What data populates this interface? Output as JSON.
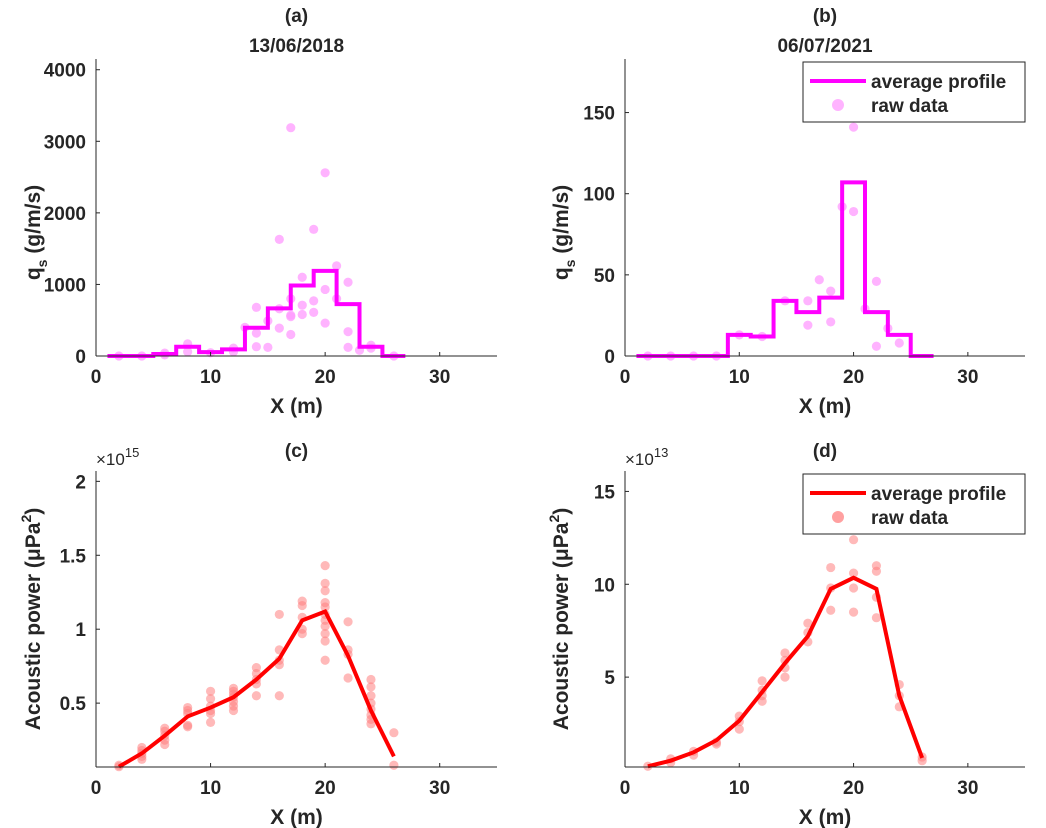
{
  "chart_data": [
    {
      "id": "a",
      "type": "line",
      "subtype": "step+scatter",
      "panel_label": "(a)",
      "title": "13/06/2018",
      "xlabel": "X (m)",
      "ylabel_main": "q",
      "ylabel_sub": "s",
      "ylabel_unit": " (g/m/s)",
      "xlim": [
        0,
        35
      ],
      "ylim": [
        0,
        4150
      ],
      "xticks": [
        0,
        10,
        20,
        30
      ],
      "yticks": [
        0,
        1000,
        2000,
        3000,
        4000
      ],
      "ytick_labels": [
        "0",
        "1000",
        "2000",
        "3000",
        "4000"
      ],
      "exponent_label": "",
      "color": "#ff00ff",
      "scatter_color": "#ff99ff",
      "legend": null,
      "average_profile": {
        "type": "step",
        "edges": [
          1,
          3,
          5,
          7,
          9,
          11,
          13,
          15,
          17,
          19,
          21,
          23,
          25,
          27
        ],
        "values": [
          0,
          0,
          28,
          130,
          55,
          93,
          395,
          665,
          985,
          1190,
          725,
          130,
          0
        ]
      },
      "raw_data": [
        [
          2,
          0
        ],
        [
          4,
          0
        ],
        [
          6,
          15
        ],
        [
          6,
          40
        ],
        [
          8,
          60
        ],
        [
          8,
          170
        ],
        [
          10,
          45
        ],
        [
          12,
          60
        ],
        [
          12,
          110
        ],
        [
          13,
          400
        ],
        [
          14,
          130
        ],
        [
          14,
          320
        ],
        [
          14,
          680
        ],
        [
          15,
          120
        ],
        [
          15,
          490
        ],
        [
          16,
          390
        ],
        [
          16,
          660
        ],
        [
          16,
          1630
        ],
        [
          17,
          300
        ],
        [
          17,
          550
        ],
        [
          17,
          570
        ],
        [
          17,
          800
        ],
        [
          17,
          3190
        ],
        [
          18,
          580
        ],
        [
          18,
          710
        ],
        [
          18,
          1100
        ],
        [
          19,
          610
        ],
        [
          19,
          770
        ],
        [
          19,
          1770
        ],
        [
          20,
          460
        ],
        [
          20,
          930
        ],
        [
          20,
          2560
        ],
        [
          21,
          800
        ],
        [
          21,
          1260
        ],
        [
          22,
          120
        ],
        [
          22,
          340
        ],
        [
          22,
          1030
        ],
        [
          23,
          80
        ],
        [
          24,
          110
        ],
        [
          24,
          150
        ],
        [
          26,
          0
        ]
      ]
    },
    {
      "id": "b",
      "type": "line",
      "subtype": "step+scatter",
      "panel_label": "(b)",
      "title": "06/07/2021",
      "xlabel": "X (m)",
      "ylabel_main": "q",
      "ylabel_sub": "s",
      "ylabel_unit": " (g/m/s)",
      "xlim": [
        0,
        35
      ],
      "ylim": [
        0,
        183
      ],
      "xticks": [
        0,
        10,
        20,
        30
      ],
      "yticks": [
        0,
        50,
        100,
        150
      ],
      "ytick_labels": [
        "0",
        "50",
        "100",
        "150"
      ],
      "exponent_label": "",
      "color": "#ff00ff",
      "scatter_color": "#ff99ff",
      "legend": {
        "position": "top-right",
        "entries": [
          "average profile",
          "raw data"
        ]
      },
      "average_profile": {
        "type": "step",
        "edges": [
          1,
          3,
          5,
          7,
          9,
          11,
          13,
          15,
          17,
          19,
          21,
          23,
          25,
          27
        ],
        "values": [
          0,
          0,
          0,
          0,
          13,
          12,
          34,
          27,
          36,
          107,
          27,
          13,
          0
        ]
      },
      "raw_data": [
        [
          2,
          0
        ],
        [
          4,
          0
        ],
        [
          6,
          0
        ],
        [
          8,
          0
        ],
        [
          10,
          13
        ],
        [
          12,
          12
        ],
        [
          14,
          34
        ],
        [
          16,
          34
        ],
        [
          16,
          19
        ],
        [
          17,
          47
        ],
        [
          18,
          40
        ],
        [
          18,
          21
        ],
        [
          19,
          92
        ],
        [
          20,
          89
        ],
        [
          20,
          141
        ],
        [
          21,
          29
        ],
        [
          22,
          46
        ],
        [
          22,
          6
        ],
        [
          23,
          17
        ],
        [
          24,
          8
        ]
      ]
    },
    {
      "id": "c",
      "type": "line",
      "subtype": "line+scatter",
      "panel_label": "(c)",
      "title": "",
      "xlabel": "X (m)",
      "ylabel_main": "Acoustic power (μPa",
      "ylabel_sub": "2",
      "ylabel_unit": ")",
      "xlim": [
        0,
        35
      ],
      "ylim": [
        0.068,
        2.07
      ],
      "xticks": [
        0,
        10,
        20,
        30
      ],
      "yticks": [
        0.5,
        1,
        1.5,
        2
      ],
      "ytick_labels": [
        "0.5",
        "1",
        "1.5",
        "2"
      ],
      "exponent_label": "15",
      "y_multiplier": "×10^15",
      "color": "#ff0000",
      "scatter_color": "#ff8080",
      "legend": null,
      "average_profile": {
        "type": "line",
        "x": [
          2,
          4,
          6,
          8,
          10,
          12,
          14,
          16,
          18,
          20,
          22,
          24,
          26
        ],
        "y": [
          0.07,
          0.16,
          0.28,
          0.41,
          0.47,
          0.54,
          0.66,
          0.8,
          1.06,
          1.12,
          0.82,
          0.45,
          0.14
        ]
      },
      "raw_data": [
        [
          2,
          0.07
        ],
        [
          2,
          0.08
        ],
        [
          4,
          0.12
        ],
        [
          4,
          0.14
        ],
        [
          4,
          0.16
        ],
        [
          4,
          0.18
        ],
        [
          4,
          0.2
        ],
        [
          6,
          0.22
        ],
        [
          6,
          0.25
        ],
        [
          6,
          0.28
        ],
        [
          6,
          0.31
        ],
        [
          6,
          0.33
        ],
        [
          8,
          0.34
        ],
        [
          8,
          0.35
        ],
        [
          8,
          0.43
        ],
        [
          8,
          0.45
        ],
        [
          8,
          0.47
        ],
        [
          10,
          0.37
        ],
        [
          10,
          0.43
        ],
        [
          10,
          0.45
        ],
        [
          10,
          0.48
        ],
        [
          10,
          0.53
        ],
        [
          10,
          0.58
        ],
        [
          12,
          0.45
        ],
        [
          12,
          0.48
        ],
        [
          12,
          0.51
        ],
        [
          12,
          0.54
        ],
        [
          12,
          0.56
        ],
        [
          12,
          0.58
        ],
        [
          12,
          0.6
        ],
        [
          14,
          0.55
        ],
        [
          14,
          0.63
        ],
        [
          14,
          0.66
        ],
        [
          14,
          0.7
        ],
        [
          14,
          0.74
        ],
        [
          16,
          0.55
        ],
        [
          16,
          0.76
        ],
        [
          16,
          0.79
        ],
        [
          16,
          0.86
        ],
        [
          16,
          1.1
        ],
        [
          18,
          0.97
        ],
        [
          18,
          1.0
        ],
        [
          18,
          1.08
        ],
        [
          18,
          1.16
        ],
        [
          18,
          1.19
        ],
        [
          20,
          0.79
        ],
        [
          20,
          0.92
        ],
        [
          20,
          0.97
        ],
        [
          20,
          1.02
        ],
        [
          20,
          1.06
        ],
        [
          20,
          1.1
        ],
        [
          20,
          1.15
        ],
        [
          20,
          1.18
        ],
        [
          20,
          1.26
        ],
        [
          20,
          1.31
        ],
        [
          20,
          1.43
        ],
        [
          22,
          0.67
        ],
        [
          22,
          0.83
        ],
        [
          22,
          0.86
        ],
        [
          22,
          1.05
        ],
        [
          24,
          0.36
        ],
        [
          24,
          0.39
        ],
        [
          24,
          0.42
        ],
        [
          24,
          0.46
        ],
        [
          24,
          0.5
        ],
        [
          24,
          0.55
        ],
        [
          24,
          0.61
        ],
        [
          24,
          0.66
        ],
        [
          26,
          0.08
        ],
        [
          26,
          0.3
        ]
      ]
    },
    {
      "id": "d",
      "type": "line",
      "subtype": "line+scatter",
      "panel_label": "(d)",
      "title": "",
      "xlabel": "X (m)",
      "ylabel_main": "Acoustic power (μPa",
      "ylabel_sub": "2",
      "ylabel_unit": ")",
      "xlim": [
        0,
        35
      ],
      "ylim": [
        0.16,
        16.1
      ],
      "xticks": [
        0,
        10,
        20,
        30
      ],
      "yticks": [
        5,
        10,
        15
      ],
      "ytick_labels": [
        "5",
        "10",
        "15"
      ],
      "exponent_label": "13",
      "y_multiplier": "×10^13",
      "color": "#ff0000",
      "scatter_color": "#ff8080",
      "legend": {
        "position": "top-right",
        "entries": [
          "average profile",
          "raw data"
        ]
      },
      "average_profile": {
        "type": "line",
        "x": [
          2,
          4,
          6,
          8,
          10,
          12,
          14,
          16,
          18,
          20,
          22,
          24,
          26
        ],
        "y": [
          0.2,
          0.5,
          0.95,
          1.6,
          2.65,
          4.2,
          5.75,
          7.2,
          9.75,
          10.35,
          9.75,
          4.0,
          0.65
        ]
      },
      "raw_data": [
        [
          2,
          0.2
        ],
        [
          4,
          0.4
        ],
        [
          4,
          0.6
        ],
        [
          6,
          0.8
        ],
        [
          6,
          1.0
        ],
        [
          8,
          1.4
        ],
        [
          8,
          1.5
        ],
        [
          10,
          2.2
        ],
        [
          10,
          2.6
        ],
        [
          10,
          2.9
        ],
        [
          12,
          3.7
        ],
        [
          12,
          4.0
        ],
        [
          12,
          4.3
        ],
        [
          12,
          4.8
        ],
        [
          14,
          5.0
        ],
        [
          14,
          5.5
        ],
        [
          14,
          5.9
        ],
        [
          14,
          6.3
        ],
        [
          16,
          6.9
        ],
        [
          16,
          7.4
        ],
        [
          16,
          7.9
        ],
        [
          18,
          8.6
        ],
        [
          18,
          9.8
        ],
        [
          18,
          10.9
        ],
        [
          20,
          8.5
        ],
        [
          20,
          9.8
        ],
        [
          20,
          10.6
        ],
        [
          20,
          12.4
        ],
        [
          22,
          8.2
        ],
        [
          22,
          9.3
        ],
        [
          22,
          10.7
        ],
        [
          22,
          11.0
        ],
        [
          24,
          3.4
        ],
        [
          24,
          4.0
        ],
        [
          24,
          4.6
        ],
        [
          26,
          0.5
        ],
        [
          26,
          0.7
        ]
      ]
    }
  ]
}
